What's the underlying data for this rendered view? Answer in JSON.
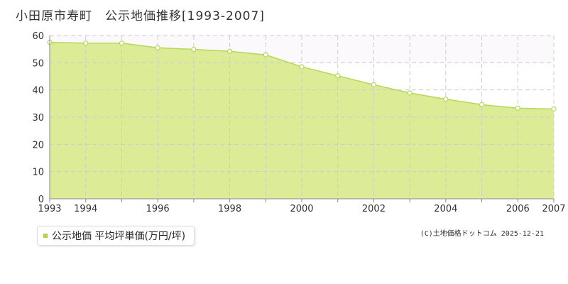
{
  "title": "小田原市寿町　公示地価推移[1993-2007]",
  "legend": {
    "label": "公示地価 平均坪単価(万円/坪)"
  },
  "credit": "(C)土地価格ドットコム 2025-12-21",
  "colors": {
    "fill": "#dcec96",
    "line": "#b5d75a",
    "point_fill": "#ffffff",
    "grid": "#cccccc",
    "axis": "#888888",
    "upper_band": "#fcf9fc",
    "legend_swatch": "#aed24a"
  },
  "chart_data": {
    "type": "area",
    "title": "小田原市寿町　公示地価推移[1993-2007]",
    "xlabel": "",
    "ylabel": "",
    "ylim": [
      0,
      60
    ],
    "yticks": [
      0,
      10,
      20,
      30,
      40,
      50,
      60
    ],
    "xlim": [
      1993,
      2007
    ],
    "xtick_labels": [
      "1993",
      "1994",
      "1996",
      "1998",
      "2000",
      "2002",
      "2004",
      "2006",
      "2007"
    ],
    "grid": true,
    "legend_position": "bottom-left",
    "series": [
      {
        "name": "公示地価 平均坪単価(万円/坪)",
        "x": [
          1993,
          1994,
          1995,
          1996,
          1997,
          1998,
          1999,
          2000,
          2001,
          2002,
          2003,
          2004,
          2005,
          2006,
          2007
        ],
        "values": [
          57.5,
          57.2,
          57.2,
          55.5,
          54.9,
          54.2,
          52.9,
          48.5,
          45.2,
          41.9,
          38.9,
          36.6,
          34.6,
          33.3,
          33.0
        ]
      }
    ]
  }
}
